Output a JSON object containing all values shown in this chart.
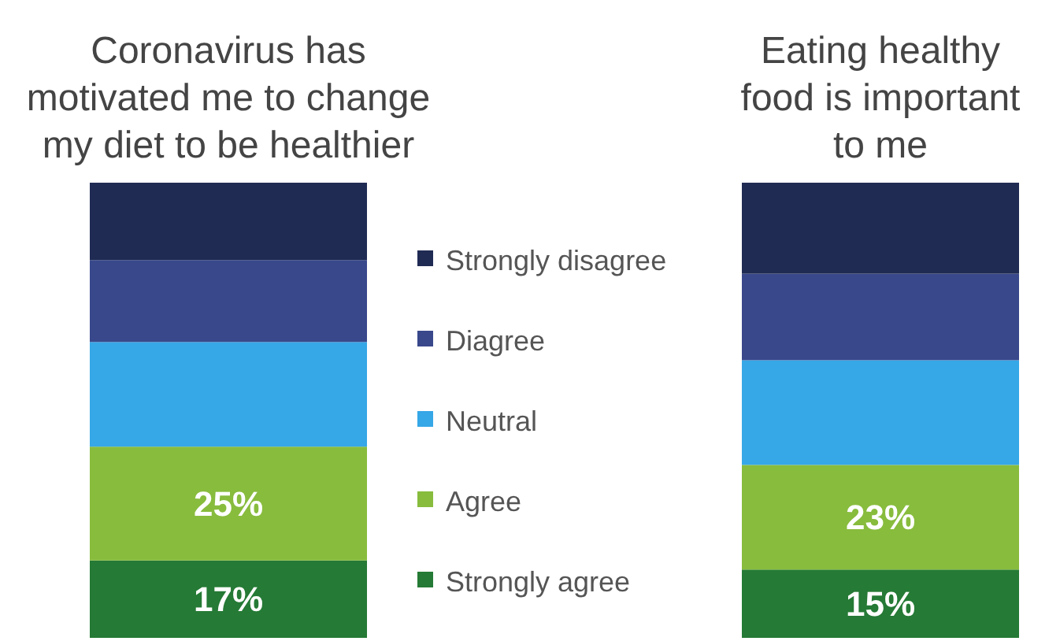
{
  "chart_data": {
    "type": "bar",
    "stacked": true,
    "categories": [
      "Coronavirus has\nmotivated me to change\nmy diet to be healthier",
      "Eating healthy\nfood is important\nto me"
    ],
    "legend": "center",
    "series": [
      {
        "name": "Strongly agree",
        "color": "#257a35",
        "values": [
          17,
          15
        ],
        "value_labels": [
          "17%",
          "15%"
        ]
      },
      {
        "name": "Agree",
        "color": "#88bc3d",
        "values": [
          25,
          23
        ],
        "value_labels": [
          "25%",
          "23%"
        ]
      },
      {
        "name": "Neutral",
        "color": "#36a7e7",
        "values": [
          23,
          23
        ],
        "value_labels": [
          null,
          null
        ]
      },
      {
        "name": "Diagree",
        "color": "#39488b",
        "values": [
          18,
          19
        ],
        "value_labels": [
          null,
          null
        ]
      },
      {
        "name": "Strongly disagree",
        "color": "#202b54",
        "values": [
          17,
          20
        ],
        "value_labels": [
          null,
          null
        ]
      }
    ]
  }
}
